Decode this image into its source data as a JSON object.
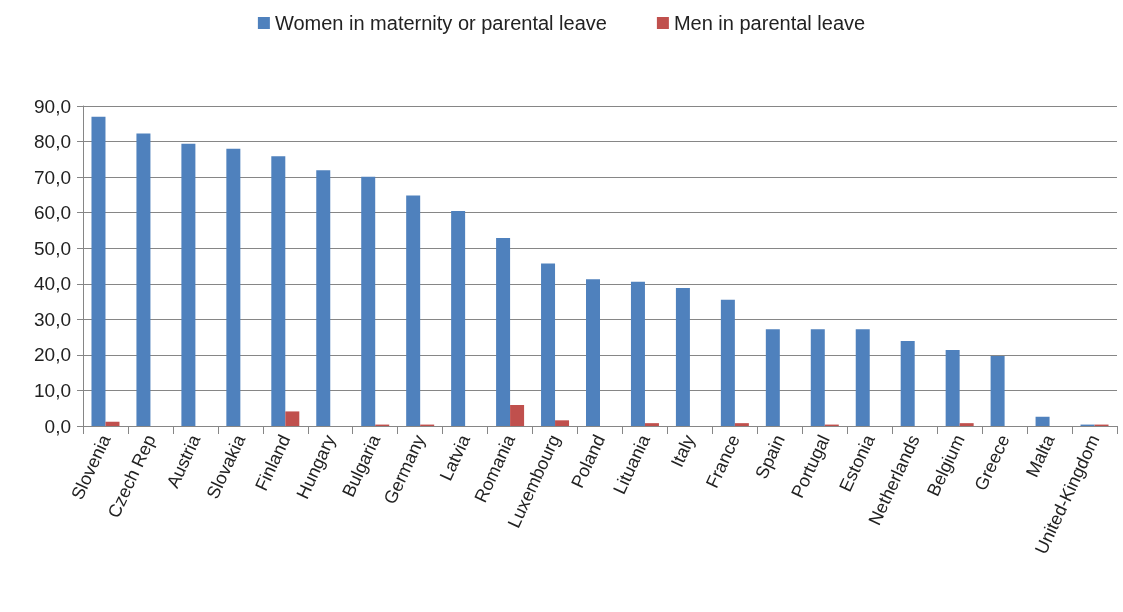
{
  "chart_data": {
    "type": "bar",
    "categories": [
      "Slovenia",
      "Czech Rep",
      "Austria",
      "Slovakia",
      "Finland",
      "Hungary",
      "Bulgaria",
      "Germany",
      "Latvia",
      "Romania",
      "Luxembourg",
      "Poland",
      "Lituania",
      "Italy",
      "France",
      "Spain",
      "Portugal",
      "Estonia",
      "Netherlands",
      "Belgium",
      "Greece",
      "Malta",
      "United-Kingdom"
    ],
    "series": [
      {
        "name": "Women in maternity or parental leave",
        "color": "#4f81bd",
        "values": [
          87.0,
          82.3,
          79.4,
          78.0,
          75.9,
          71.9,
          70.1,
          64.8,
          60.5,
          52.9,
          45.7,
          41.3,
          40.6,
          38.8,
          35.5,
          27.2,
          27.2,
          27.2,
          23.9,
          21.4,
          19.7,
          2.6,
          0.4
        ]
      },
      {
        "name": "Men in parental leave",
        "color": "#c0504d",
        "values": [
          1.2,
          0,
          0,
          0,
          4.1,
          0,
          0.4,
          0.4,
          0,
          5.9,
          1.6,
          0,
          0.8,
          0,
          0.8,
          0,
          0.4,
          0,
          0,
          0.8,
          0,
          0,
          0.4
        ]
      }
    ],
    "ylim": [
      0,
      90
    ],
    "yticks": [
      {
        "value": 0,
        "label": "0,0"
      },
      {
        "value": 10,
        "label": "10,0"
      },
      {
        "value": 20,
        "label": "20,0"
      },
      {
        "value": 30,
        "label": "30,0"
      },
      {
        "value": 40,
        "label": "40,0"
      },
      {
        "value": 50,
        "label": "50,0"
      },
      {
        "value": 60,
        "label": "60,0"
      },
      {
        "value": 70,
        "label": "70,0"
      },
      {
        "value": 80,
        "label": "80,0"
      },
      {
        "value": 90,
        "label": "90,0"
      }
    ],
    "grid": "y",
    "legend": "top"
  }
}
